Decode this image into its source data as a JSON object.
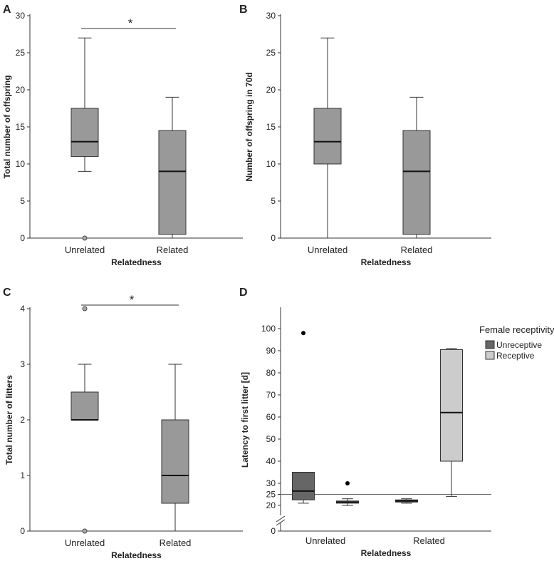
{
  "chart_data": [
    {
      "panel": "A",
      "type": "box",
      "xlabel": "Relatedness",
      "ylabel": "Total number of offspring",
      "ylim": [
        0,
        30
      ],
      "yticks": [
        0,
        5,
        10,
        15,
        20,
        25,
        30
      ],
      "categories": [
        "Unrelated",
        "Related"
      ],
      "series": [
        {
          "boxes": [
            {
              "whisker_low": 9,
              "q1": 11,
              "median": 13,
              "q3": 17.5,
              "whisker_high": 27,
              "outliers": [
                0
              ]
            },
            {
              "whisker_low": 0,
              "q1": 0.5,
              "median": 9,
              "q3": 14.5,
              "whisker_high": 19,
              "outliers": []
            }
          ],
          "color": "#999999"
        }
      ],
      "significance": {
        "from": "Unrelated",
        "to": "Related",
        "label": "*",
        "y": 28
      }
    },
    {
      "panel": "B",
      "type": "box",
      "xlabel": "Relatedness",
      "ylabel": "Number of offspring in 70d",
      "ylim": [
        0,
        30
      ],
      "yticks": [
        0,
        5,
        10,
        15,
        20,
        25,
        30
      ],
      "categories": [
        "Unrelated",
        "Related"
      ],
      "series": [
        {
          "boxes": [
            {
              "whisker_low": 0,
              "q1": 10,
              "median": 13,
              "q3": 17.5,
              "whisker_high": 27,
              "outliers": []
            },
            {
              "whisker_low": 0,
              "q1": 0.5,
              "median": 9,
              "q3": 14.5,
              "whisker_high": 19,
              "outliers": []
            }
          ],
          "color": "#999999"
        }
      ]
    },
    {
      "panel": "C",
      "type": "box",
      "xlabel": "Relatedness",
      "ylabel": "Total number of litters",
      "ylim": [
        0,
        4
      ],
      "yticks": [
        0,
        1,
        2,
        3,
        4
      ],
      "categories": [
        "Unrelated",
        "Related"
      ],
      "series": [
        {
          "boxes": [
            {
              "whisker_low": 2,
              "q1": 2,
              "median": 2,
              "q3": 2.5,
              "whisker_high": 3,
              "outliers": [
                0,
                4
              ]
            },
            {
              "whisker_low": 0,
              "q1": 0.5,
              "median": 1,
              "q3": 2,
              "whisker_high": 3,
              "outliers": []
            }
          ],
          "color": "#999999"
        }
      ],
      "significance": {
        "from": "Unrelated",
        "to": "Related",
        "label": "*",
        "y": 4
      }
    },
    {
      "panel": "D",
      "type": "box",
      "xlabel": "Relatedness",
      "ylabel": "Latency to first litter [d]",
      "ylim": [
        0,
        100
      ],
      "axis_break": [
        0,
        20
      ],
      "yticks": [
        0,
        20,
        25,
        30,
        40,
        50,
        60,
        70,
        80,
        90,
        100
      ],
      "reference_line": 25,
      "categories": [
        "Unrelated",
        "Related"
      ],
      "legend": {
        "title": "Female receptivity",
        "position": "top-right",
        "entries": [
          "Unreceptive",
          "Receptive"
        ]
      },
      "series": [
        {
          "name": "Unreceptive",
          "color": "#666666",
          "boxes": [
            {
              "whisker_low": 21,
              "q1": 22.5,
              "median": 26.5,
              "q3": 35,
              "whisker_high": 35,
              "outliers": [
                98
              ]
            },
            {
              "whisker_low": 21,
              "q1": 21.5,
              "median": 22,
              "q3": 22.5,
              "whisker_high": 23,
              "outliers": []
            }
          ]
        },
        {
          "name": "Receptive",
          "color": "#cccccc",
          "boxes": [
            {
              "whisker_low": 20,
              "q1": 21,
              "median": 21.5,
              "q3": 22,
              "whisker_high": 23,
              "outliers": [
                30
              ]
            },
            {
              "whisker_low": 24,
              "q1": 40,
              "median": 62,
              "q3": 90.5,
              "whisker_high": 91,
              "outliers": []
            }
          ]
        }
      ]
    }
  ]
}
